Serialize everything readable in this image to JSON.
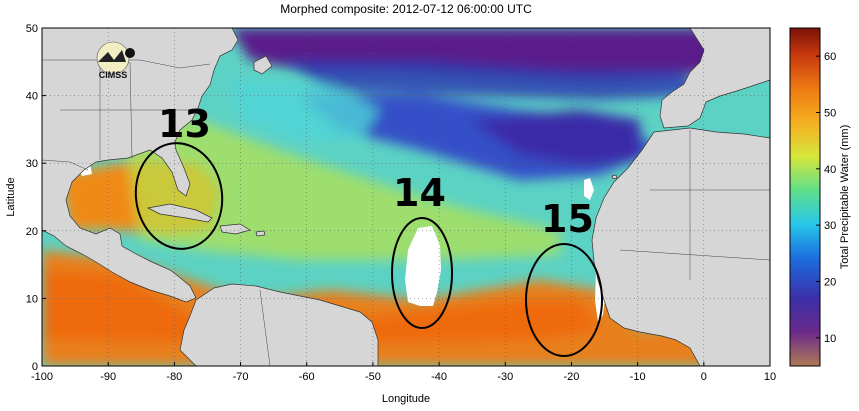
{
  "title": "Morphed composite: 2012-07-12 06:00:00 UTC",
  "x_axis": {
    "label": "Longitude",
    "ticks": [
      "-100",
      "-90",
      "-80",
      "-70",
      "-60",
      "-50",
      "-40",
      "-30",
      "-20",
      "-10",
      "0",
      "10"
    ]
  },
  "y_axis": {
    "label": "Latitude",
    "ticks": [
      "0",
      "10",
      "20",
      "30",
      "40",
      "50"
    ]
  },
  "colorbar": {
    "label": "Total Precipitable Water (mm)",
    "ticks": [
      "10",
      "20",
      "30",
      "40",
      "50",
      "60"
    ],
    "colors": [
      "#b07a55",
      "#6a2a8a",
      "#3b2fa8",
      "#1c6fe0",
      "#27c7e8",
      "#5fe08a",
      "#d6e63a",
      "#f5b020",
      "#ee7a12",
      "#c8380e",
      "#7a1208"
    ]
  },
  "logo": {
    "text": "CIMSS"
  },
  "annotations": [
    {
      "label": "13"
    },
    {
      "label": "14"
    },
    {
      "label": "15"
    }
  ],
  "colors": {
    "land": "#d6d6d6",
    "ocean_moist": "#e8801a",
    "ocean_mid": "#5cd2c4",
    "ocean_dry": "#3a3ab8",
    "very_dry": "#5a1a8a",
    "no_data": "#ffffff"
  }
}
